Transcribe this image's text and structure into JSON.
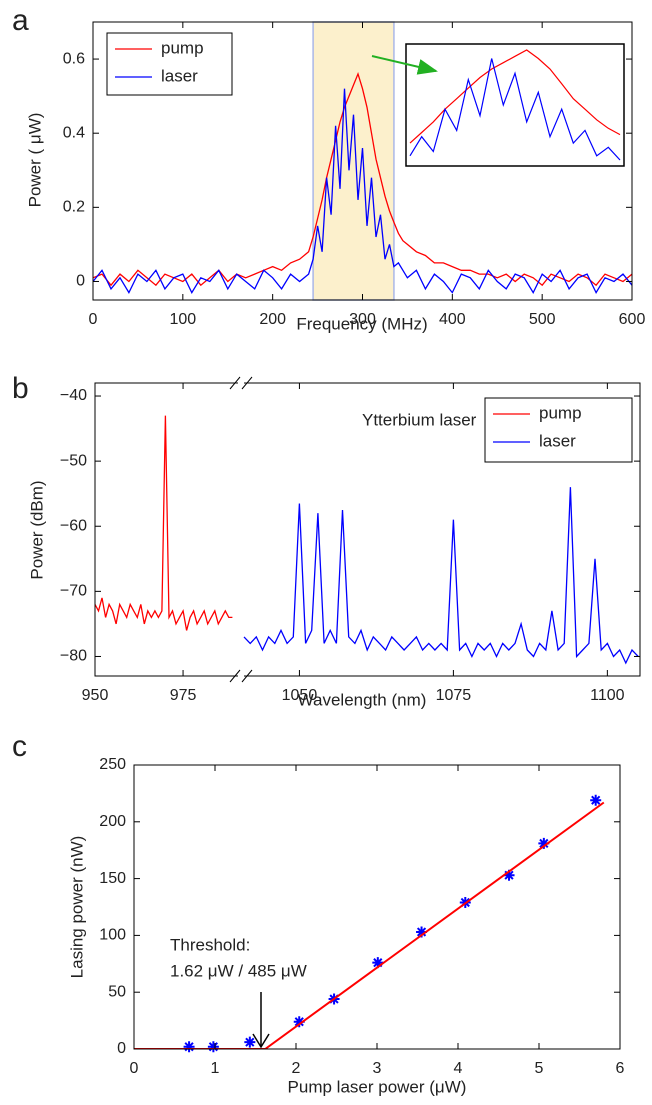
{
  "chart_data": [
    {
      "type": "line",
      "panel": "a",
      "xlabel": "Frequency (MHz)",
      "ylabel": "Power ( μW)",
      "xlim": [
        0,
        600
      ],
      "ylim": [
        -0.05,
        0.7
      ],
      "xticks": [
        0,
        100,
        200,
        300,
        400,
        500,
        600
      ],
      "yticks": [
        0,
        0.2,
        0.4,
        0.6
      ],
      "highlight": [
        245,
        335
      ],
      "inset": true,
      "legend": "upper left",
      "x": [
        0,
        10,
        20,
        30,
        40,
        50,
        60,
        70,
        80,
        90,
        100,
        110,
        120,
        130,
        140,
        150,
        160,
        170,
        180,
        190,
        200,
        210,
        220,
        230,
        240,
        245,
        250,
        255,
        260,
        265,
        270,
        275,
        280,
        285,
        290,
        295,
        300,
        305,
        310,
        315,
        320,
        325,
        330,
        335,
        340,
        345,
        350,
        360,
        370,
        380,
        390,
        400,
        410,
        420,
        430,
        440,
        450,
        460,
        470,
        480,
        490,
        500,
        510,
        520,
        530,
        540,
        550,
        560,
        570,
        580,
        590,
        600
      ],
      "series": [
        {
          "name": "pump",
          "color": "#ff0000",
          "values": [
            0.01,
            0.02,
            -0.01,
            0.02,
            0.0,
            0.03,
            0.01,
            -0.01,
            0.02,
            0.01,
            0.0,
            0.02,
            -0.01,
            0.01,
            0.03,
            0.0,
            0.02,
            0.01,
            0.02,
            0.03,
            0.04,
            0.03,
            0.05,
            0.06,
            0.08,
            0.12,
            0.17,
            0.22,
            0.28,
            0.33,
            0.38,
            0.43,
            0.47,
            0.5,
            0.53,
            0.56,
            0.52,
            0.47,
            0.4,
            0.33,
            0.28,
            0.23,
            0.19,
            0.16,
            0.13,
            0.11,
            0.1,
            0.08,
            0.07,
            0.05,
            0.05,
            0.04,
            0.03,
            0.03,
            0.02,
            0.02,
            0.01,
            0.02,
            0.0,
            0.02,
            0.01,
            -0.01,
            0.02,
            0.01,
            0.0,
            0.02,
            0.01,
            -0.01,
            0.02,
            0.01,
            0.0,
            0.02
          ]
        },
        {
          "name": "laser",
          "color": "#0000ff",
          "values": [
            0.0,
            0.03,
            -0.02,
            0.01,
            -0.03,
            0.02,
            0.0,
            0.03,
            -0.02,
            0.01,
            0.02,
            -0.03,
            0.01,
            0.0,
            0.03,
            -0.02,
            0.02,
            0.0,
            -0.02,
            0.03,
            0.01,
            -0.02,
            0.02,
            0.0,
            0.02,
            0.06,
            0.15,
            0.08,
            0.28,
            0.18,
            0.42,
            0.25,
            0.52,
            0.3,
            0.45,
            0.22,
            0.36,
            0.15,
            0.28,
            0.12,
            0.18,
            0.06,
            0.1,
            0.04,
            0.05,
            0.03,
            0.01,
            0.03,
            -0.02,
            0.02,
            0.0,
            -0.03,
            0.02,
            0.01,
            -0.02,
            0.03,
            0.0,
            -0.02,
            0.02,
            0.01,
            -0.03,
            0.02,
            0.0,
            0.03,
            -0.02,
            0.01,
            0.02,
            -0.03,
            0.01,
            0.0,
            0.02,
            -0.01
          ]
        }
      ]
    },
    {
      "type": "line",
      "panel": "b",
      "xlabel": "Wavelength (nm)",
      "ylabel": "Power (dBm)",
      "annotation": [
        "Ytterbium laser"
      ],
      "xlim": [
        [
          950,
          990.6
        ],
        [
          1041,
          1105.3
        ]
      ],
      "ylim": [
        -83,
        -38
      ],
      "xticks": [
        950,
        975,
        1050,
        1075,
        1100
      ],
      "yticks": [
        {
          "value": -40,
          "label": "−40"
        },
        {
          "value": -50,
          "label": "−50"
        },
        {
          "value": -60,
          "label": "−60"
        },
        {
          "value": -70,
          "label": "−70"
        },
        {
          "value": -80,
          "label": "−80"
        }
      ],
      "legend": "upper right",
      "series": [
        {
          "name": "pump",
          "color": "#ff0000",
          "x": [
            950,
            951,
            952,
            953,
            954,
            955,
            956,
            957,
            958,
            959,
            960,
            961,
            962,
            963,
            964,
            965,
            966,
            967,
            968,
            969,
            970,
            971,
            972,
            973,
            974,
            975,
            976,
            977,
            978,
            979,
            980,
            981,
            982,
            983,
            984,
            985,
            986,
            987,
            988,
            989
          ],
          "values": [
            -72,
            -73,
            -71,
            -74,
            -72,
            -73,
            -75,
            -72,
            -73,
            -74,
            -72,
            -73,
            -74,
            -72,
            -75,
            -73,
            -74,
            -73,
            -74,
            -73,
            -43,
            -74,
            -73,
            -75,
            -74,
            -73,
            -76,
            -74,
            -73,
            -75,
            -74,
            -73,
            -75,
            -74,
            -73,
            -75,
            -74,
            -73,
            -74,
            -74
          ]
        },
        {
          "name": "laser",
          "color": "#0000ff",
          "x": [
            1041,
            1042,
            1043,
            1044,
            1045,
            1046,
            1047,
            1048,
            1049,
            1050,
            1051,
            1052,
            1053,
            1054,
            1055,
            1056,
            1057,
            1058,
            1059,
            1060,
            1061,
            1062,
            1063,
            1064,
            1065,
            1066,
            1067,
            1068,
            1069,
            1070,
            1071,
            1072,
            1073,
            1074,
            1075,
            1076,
            1077,
            1078,
            1079,
            1080,
            1081,
            1082,
            1083,
            1084,
            1085,
            1086,
            1087,
            1088,
            1089,
            1090,
            1091,
            1092,
            1093,
            1094,
            1095,
            1096,
            1097,
            1098,
            1099,
            1100,
            1101,
            1102,
            1103,
            1104,
            1105
          ],
          "values": [
            -77,
            -78,
            -77,
            -79,
            -77,
            -78,
            -76,
            -78,
            -77,
            -56.5,
            -78,
            -76,
            -58,
            -78,
            -76,
            -78,
            -57.5,
            -77,
            -78,
            -76,
            -79,
            -77,
            -78,
            -79,
            -77,
            -78,
            -79,
            -78,
            -77,
            -79,
            -78,
            -79,
            -78,
            -79,
            -59,
            -79,
            -78,
            -80,
            -78,
            -79,
            -78,
            -80,
            -78,
            -79,
            -78,
            -75,
            -79,
            -80,
            -78,
            -79,
            -73,
            -79,
            -78,
            -54,
            -80,
            -79,
            -78,
            -65,
            -79,
            -78,
            -80,
            -79,
            -81,
            -79,
            -80
          ]
        }
      ]
    },
    {
      "type": "scatter",
      "panel": "c",
      "xlabel": "Pump laser power (μW)",
      "ylabel": "Lasing power (nW)",
      "annotation": [
        "Threshold:",
        "1.62 μW / 485 μW"
      ],
      "xlim": [
        0,
        6
      ],
      "ylim": [
        0,
        250
      ],
      "xticks": [
        0,
        1,
        2,
        3,
        4,
        5,
        6
      ],
      "yticks": [
        0,
        50,
        100,
        150,
        200,
        250
      ],
      "series": [
        {
          "color": "#0000ff",
          "marker": "star",
          "x": [
            0.68,
            0.98,
            1.43,
            2.04,
            2.47,
            3.01,
            3.55,
            4.09,
            4.63,
            5.06,
            5.7
          ],
          "values": [
            2,
            2,
            6,
            24,
            44,
            76,
            103,
            129,
            153,
            181,
            219
          ]
        },
        {
          "color": "#ff0000",
          "x": [
            0,
            1.62,
            5.8
          ],
          "values": [
            0,
            0,
            217
          ]
        }
      ]
    }
  ]
}
